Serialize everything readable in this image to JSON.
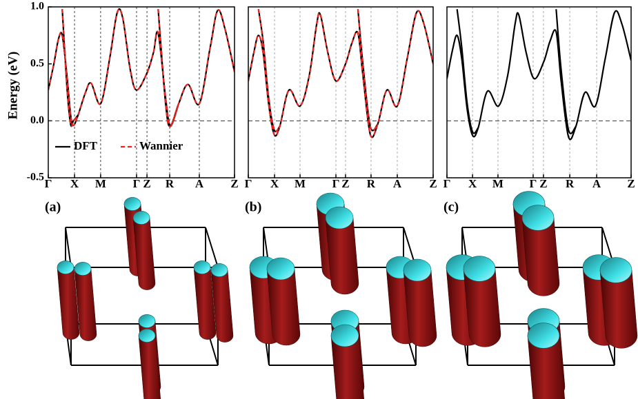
{
  "chart_data": [
    {
      "type": "line",
      "panel_label": "(a)",
      "ylabel": "Energy (eV)",
      "xlim": [
        0,
        1
      ],
      "ylim": [
        -0.5,
        1.0
      ],
      "xticks": [
        {
          "value": 0,
          "label": "Γ"
        },
        {
          "value": 0.141,
          "label": "X"
        },
        {
          "value": 0.281,
          "label": "M"
        },
        {
          "value": 0.474,
          "label": "Γ"
        },
        {
          "value": 0.53,
          "label": "Z"
        },
        {
          "value": 0.652,
          "label": "R"
        },
        {
          "value": 0.811,
          "label": "A"
        },
        {
          "value": 1,
          "label": "Z"
        }
      ],
      "yticks": [
        -0.5,
        {
          "value": 0,
          "label": "0.0"
        },
        0.5,
        {
          "value": 1,
          "label": "1.0"
        }
      ],
      "grid": true,
      "grid_color": "#444444",
      "hline": 0,
      "legend": "lower left",
      "x": [
        0,
        0.03,
        0.055,
        0.075,
        0.1,
        0.12,
        0.135,
        0.16,
        0.2,
        0.23,
        0.281,
        0.33,
        0.37,
        0.4,
        0.44,
        0.474,
        0.53,
        0.565,
        0.59,
        0.63,
        0.655,
        0.7,
        0.75,
        0.811,
        0.87,
        0.91,
        0.95,
        1
      ],
      "series": [
        {
          "name": "DFT",
          "color": "#000000",
          "dashed": false,
          "bands": [
            [
              0.27,
              0.5,
              0.72,
              0.75,
              0.4,
              0.05,
              -0.04,
              0.05,
              0.25,
              0.33,
              0.15,
              0.55,
              0.95,
              0.9,
              0.45,
              0.27,
              0.42,
              0.6,
              0.77,
              0.2,
              -0.04,
              0.15,
              0.32,
              0.15,
              0.65,
              0.97,
              0.8,
              0.43
            ],
            [
              null,
              null,
              null,
              0.98,
              0.3,
              -0.03,
              0.0,
              0.05,
              null,
              null,
              null,
              null,
              null,
              null,
              null,
              null,
              null,
              null,
              0.98,
              0.15,
              -0.05,
              0.15,
              null,
              null,
              null,
              null,
              null,
              null
            ]
          ]
        },
        {
          "name": "Wannier",
          "color": "#e8231f",
          "dashed": true,
          "bands": [
            [
              0.27,
              0.5,
              0.72,
              0.75,
              0.4,
              0.05,
              -0.04,
              0.05,
              0.25,
              0.33,
              0.15,
              0.55,
              0.95,
              0.9,
              0.45,
              0.27,
              0.42,
              0.6,
              0.77,
              0.2,
              -0.04,
              0.15,
              0.32,
              0.15,
              0.65,
              0.97,
              0.8,
              0.43
            ],
            [
              null,
              null,
              null,
              0.98,
              0.3,
              -0.03,
              0.0,
              0.05,
              null,
              null,
              null,
              null,
              null,
              null,
              null,
              null,
              null,
              null,
              0.98,
              0.15,
              -0.05,
              0.15,
              null,
              null,
              null,
              null,
              null,
              null
            ]
          ]
        }
      ]
    },
    {
      "type": "line",
      "panel_label": "(b)",
      "xlim": [
        0,
        1
      ],
      "ylim": [
        -0.5,
        1.0
      ],
      "xticks": [
        {
          "value": 0,
          "label": "Γ"
        },
        {
          "value": 0.142,
          "label": "X"
        },
        {
          "value": 0.28,
          "label": "M"
        },
        {
          "value": 0.474,
          "label": "Γ"
        },
        {
          "value": 0.526,
          "label": "Z"
        },
        {
          "value": 0.664,
          "label": "R"
        },
        {
          "value": 0.806,
          "label": "A"
        },
        {
          "value": 1,
          "label": "Z"
        }
      ],
      "grid": true,
      "grid_color": "#aaaaaa",
      "hline": 0,
      "x": [
        0,
        0.03,
        0.055,
        0.08,
        0.11,
        0.14,
        0.17,
        0.22,
        0.28,
        0.33,
        0.37,
        0.39,
        0.43,
        0.474,
        0.526,
        0.56,
        0.593,
        0.62,
        0.66,
        0.7,
        0.75,
        0.806,
        0.86,
        0.91,
        0.95,
        1
      ],
      "series": [
        {
          "color": "#000000",
          "dashed": false,
          "bands": [
            [
              0.35,
              0.6,
              0.75,
              0.6,
              0.15,
              -0.12,
              -0.05,
              0.27,
              0.13,
              0.4,
              0.85,
              0.93,
              0.6,
              0.35,
              0.5,
              0.68,
              0.77,
              0.4,
              -0.12,
              -0.03,
              0.27,
              0.13,
              0.55,
              0.95,
              0.85,
              0.5
            ],
            [
              null,
              null,
              0.98,
              0.7,
              0.2,
              -0.08,
              -0.05,
              null,
              null,
              null,
              null,
              null,
              null,
              null,
              null,
              null,
              0.98,
              0.5,
              -0.05,
              -0.03,
              null,
              null,
              null,
              null,
              null,
              null
            ]
          ]
        },
        {
          "color": "#e8231f",
          "dashed": true,
          "bands": [
            [
              0.35,
              0.6,
              0.75,
              0.6,
              0.15,
              -0.12,
              -0.05,
              0.27,
              0.13,
              0.4,
              0.85,
              0.93,
              0.6,
              0.35,
              0.5,
              0.68,
              0.77,
              0.4,
              -0.12,
              -0.03,
              0.27,
              0.13,
              0.55,
              0.95,
              0.85,
              0.5
            ],
            [
              null,
              null,
              0.98,
              0.7,
              0.2,
              -0.08,
              -0.05,
              null,
              null,
              null,
              null,
              null,
              null,
              null,
              null,
              null,
              0.98,
              0.5,
              -0.05,
              -0.03,
              null,
              null,
              null,
              null,
              null,
              null
            ]
          ]
        }
      ]
    },
    {
      "type": "line",
      "panel_label": "(c)",
      "xlim": [
        0,
        1
      ],
      "ylim": [
        -0.5,
        1.0
      ],
      "xticks": [
        {
          "value": 0,
          "label": "Γ"
        },
        {
          "value": 0.139,
          "label": "X"
        },
        {
          "value": 0.277,
          "label": "M"
        },
        {
          "value": 0.468,
          "label": "Γ"
        },
        {
          "value": 0.524,
          "label": "Z"
        },
        {
          "value": 0.667,
          "label": "R"
        },
        {
          "value": 0.813,
          "label": "A"
        },
        {
          "value": 1,
          "label": "Z"
        }
      ],
      "grid": true,
      "grid_color": "#aaaaaa",
      "hline": 0,
      "x": [
        0,
        0.03,
        0.055,
        0.08,
        0.11,
        0.14,
        0.17,
        0.22,
        0.28,
        0.33,
        0.37,
        0.39,
        0.43,
        0.474,
        0.526,
        0.56,
        0.593,
        0.62,
        0.66,
        0.7,
        0.75,
        0.806,
        0.86,
        0.91,
        0.95,
        1
      ],
      "series": [
        {
          "color": "#000000",
          "dashed": false,
          "bands": [
            [
              0.37,
              0.62,
              0.75,
              0.55,
              0.1,
              -0.13,
              -0.06,
              0.26,
              0.13,
              0.4,
              0.85,
              0.93,
              0.6,
              0.37,
              0.52,
              0.7,
              0.78,
              0.35,
              -0.14,
              -0.05,
              0.25,
              0.13,
              0.55,
              0.95,
              0.85,
              0.53
            ],
            [
              null,
              null,
              0.98,
              0.65,
              0.15,
              -0.1,
              -0.06,
              null,
              null,
              null,
              null,
              null,
              null,
              null,
              null,
              null,
              0.98,
              0.45,
              -0.08,
              -0.05,
              null,
              null,
              null,
              null,
              null,
              null
            ]
          ]
        }
      ]
    }
  ]
}
